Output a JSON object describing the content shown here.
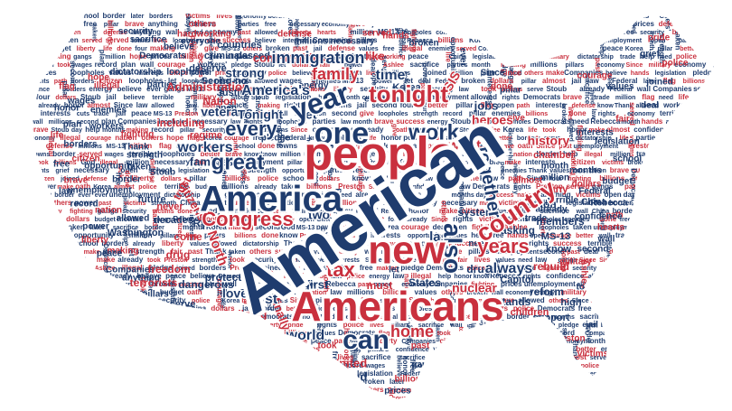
{
  "colors": {
    "red": "#c9303e",
    "blue": "#1f3c6e",
    "background": "#ffffff"
  },
  "words": [
    {
      "text": "American",
      "color": "blue"
    },
    {
      "text": "people",
      "color": "red"
    },
    {
      "text": "Americans",
      "color": "red"
    },
    {
      "text": "America",
      "color": "blue"
    },
    {
      "text": "new",
      "color": "red"
    },
    {
      "text": "can",
      "color": "blue"
    },
    {
      "text": "one",
      "color": "blue"
    },
    {
      "text": "also",
      "color": "blue"
    },
    {
      "text": "year",
      "color": "blue"
    },
    {
      "text": "tonight",
      "color": "red"
    },
    {
      "text": "country",
      "color": "red"
    },
    {
      "text": "work",
      "color": "blue"
    },
    {
      "text": "Congress",
      "color": "red"
    },
    {
      "text": "great",
      "color": "blue"
    },
    {
      "text": "every",
      "color": "blue"
    },
    {
      "text": "together",
      "color": "blue"
    },
    {
      "text": "years",
      "color": "red"
    },
    {
      "text": "home",
      "color": "red"
    },
    {
      "text": "tax",
      "color": "red"
    },
    {
      "text": "always",
      "color": "blue"
    },
    {
      "text": "family",
      "color": "red"
    },
    {
      "text": "immigration",
      "color": "blue"
    },
    {
      "text": "America's",
      "color": "blue"
    },
    {
      "text": "want",
      "color": "red"
    },
    {
      "text": "time",
      "color": "blue"
    },
    {
      "text": "world",
      "color": "blue"
    },
    {
      "text": "just",
      "color": "blue"
    },
    {
      "text": "last",
      "color": "blue"
    },
    {
      "text": "workers",
      "color": "blue"
    },
    {
      "text": "history",
      "color": "red"
    },
    {
      "text": "heroes",
      "color": "red"
    },
    {
      "text": "nuclear",
      "color": "red"
    },
    {
      "text": "jobs",
      "color": "blue"
    },
    {
      "text": "love",
      "color": "blue"
    },
    {
      "text": "two",
      "color": "blue"
    },
    {
      "text": "first",
      "color": "blue"
    },
    {
      "text": "veterans",
      "color": "blue"
    },
    {
      "text": "families",
      "color": "blue"
    },
    {
      "text": "Tonight",
      "color": "blue"
    },
    {
      "text": "get",
      "color": "blue"
    },
    {
      "text": "strong",
      "color": "blue"
    },
    {
      "text": "communities",
      "color": "red"
    },
    {
      "text": "Administration",
      "color": "red"
    },
    {
      "text": "like",
      "color": "red"
    },
    {
      "text": "ISIS",
      "color": "red"
    },
    {
      "text": "citizens",
      "color": "red"
    },
    {
      "text": "North",
      "color": "red"
    },
    {
      "text": "safe",
      "color": "red"
    },
    {
      "text": "building",
      "color": "red"
    },
    {
      "text": "finally",
      "color": "red"
    },
    {
      "text": "United",
      "color": "red"
    },
    {
      "text": "proud",
      "color": "blue"
    },
    {
      "text": "drug",
      "color": "red"
    },
    {
      "text": "protect",
      "color": "blue"
    },
    {
      "text": "freedom",
      "color": "red"
    },
    {
      "text": "dangerous",
      "color": "blue"
    },
    {
      "text": "States",
      "color": "blue"
    },
    {
      "text": "must",
      "color": "red"
    },
    {
      "text": "system",
      "color": "blue"
    },
    {
      "text": "many",
      "color": "red"
    },
    {
      "text": "Kenton",
      "color": "blue"
    },
    {
      "text": "members",
      "color": "blue"
    },
    {
      "text": "asking",
      "color": "blue"
    },
    {
      "text": "stands",
      "color": "blue"
    },
    {
      "text": "reform",
      "color": "blue"
    },
    {
      "text": "drugs",
      "color": "blue"
    },
    {
      "text": "rebuild",
      "color": "red"
    },
    {
      "text": "Capitol",
      "color": "blue"
    },
    {
      "text": "chamber",
      "color": "red"
    },
    {
      "text": "support",
      "color": "blue"
    },
    {
      "text": "children",
      "color": "red"
    },
    {
      "text": "high",
      "color": "blue"
    },
    {
      "text": "Ryan",
      "color": "blue"
    },
    {
      "text": "come",
      "color": "red"
    },
    {
      "text": "decades",
      "color": "blue"
    },
    {
      "text": "trust",
      "color": "red"
    },
    {
      "text": "including",
      "color": "red"
    },
    {
      "text": "regime",
      "color": "red"
    },
    {
      "text": "never",
      "color": "red"
    },
    {
      "text": "future",
      "color": "blue"
    },
    {
      "text": "terrorists",
      "color": "red"
    },
    {
      "text": "Washington",
      "color": "blue"
    },
    {
      "text": "Nation",
      "color": "red"
    },
    {
      "text": "Justin",
      "color": "blue"
    },
    {
      "text": "Seong-ho",
      "color": "blue"
    },
    {
      "text": "deserve",
      "color": "blue"
    },
    {
      "text": "passed",
      "color": "blue"
    },
    {
      "text": "criminals",
      "color": "blue"
    },
    {
      "text": "countries",
      "color": "blue"
    },
    {
      "text": "everyone",
      "color": "blue"
    },
    {
      "text": "Korea",
      "color": "blue"
    },
    {
      "text": "Since",
      "color": "blue"
    },
    {
      "text": "pillar",
      "color": "blue"
    },
    {
      "text": "MS-13",
      "color": "blue"
    },
    {
      "text": "know",
      "color": "blue"
    },
    {
      "text": "make",
      "color": "red"
    },
    {
      "text": "cuts",
      "color": "blue"
    },
    {
      "text": "took",
      "color": "red"
    },
    {
      "text": "later",
      "color": "blue"
    },
    {
      "text": "past",
      "color": "red"
    },
    {
      "text": "help",
      "color": "blue"
    },
    {
      "text": "let",
      "color": "blue"
    },
    {
      "text": "four",
      "color": "blue"
    },
    {
      "text": "month",
      "color": "blue"
    },
    {
      "text": "million",
      "color": "blue"
    },
    {
      "text": "dollars",
      "color": "red"
    },
    {
      "text": "legislation",
      "color": "blue"
    },
    {
      "text": "interests",
      "color": "blue"
    },
    {
      "text": "months",
      "color": "blue"
    },
    {
      "text": "military",
      "color": "red"
    },
    {
      "text": "trade",
      "color": "blue"
    },
    {
      "text": "second",
      "color": "blue"
    },
    {
      "text": "Preston",
      "color": "red"
    },
    {
      "text": "serve",
      "color": "blue"
    },
    {
      "text": "pillars",
      "color": "blue"
    },
    {
      "text": "making",
      "color": "red"
    },
    {
      "text": "anything",
      "color": "blue"
    },
    {
      "text": "Companies",
      "color": "blue"
    },
    {
      "text": "allowed",
      "color": "blue"
    },
    {
      "text": "open",
      "color": "blue"
    },
    {
      "text": "pledge",
      "color": "blue"
    },
    {
      "text": "Stoub",
      "color": "blue"
    },
    {
      "text": "border",
      "color": "blue"
    },
    {
      "text": "strength",
      "color": "blue"
    },
    {
      "text": "Rebecca",
      "color": "blue"
    },
    {
      "text": "Ashlee",
      "color": "red"
    },
    {
      "text": "God",
      "color": "blue"
    },
    {
      "text": "Democrats",
      "color": "blue"
    },
    {
      "text": "dictatorship",
      "color": "blue"
    },
    {
      "text": "loopholes",
      "color": "blue"
    },
    {
      "text": "parties",
      "color": "blue"
    },
    {
      "text": "energy",
      "color": "blue"
    },
    {
      "text": "hands",
      "color": "red"
    },
    {
      "text": "served",
      "color": "red"
    },
    {
      "text": "defense",
      "color": "red"
    },
    {
      "text": "necessary",
      "color": "blue"
    },
    {
      "text": "millions",
      "color": "blue"
    },
    {
      "text": "economy",
      "color": "blue"
    },
    {
      "text": "broken",
      "color": "blue"
    },
    {
      "text": "done",
      "color": "red"
    },
    {
      "text": "lives",
      "color": "red"
    },
    {
      "text": "give",
      "color": "red"
    },
    {
      "text": "Federal",
      "color": "blue"
    },
    {
      "text": "China",
      "color": "blue"
    },
    {
      "text": "almost",
      "color": "red"
    },
    {
      "text": "already",
      "color": "blue"
    },
    {
      "text": "confidence",
      "color": "blue"
    },
    {
      "text": "terrible",
      "color": "blue"
    },
    {
      "text": "need",
      "color": "blue"
    },
    {
      "text": "Thank",
      "color": "blue"
    },
    {
      "text": "taken",
      "color": "blue"
    },
    {
      "text": "believe",
      "color": "blue"
    },
    {
      "text": "others",
      "color": "red"
    },
    {
      "text": "sacrifice",
      "color": "blue"
    },
    {
      "text": "hardworking",
      "color": "red"
    },
    {
      "text": "illegal",
      "color": "red"
    },
    {
      "text": "security",
      "color": "blue"
    },
    {
      "text": "ever",
      "color": "blue"
    },
    {
      "text": "day",
      "color": "blue"
    },
    {
      "text": "better",
      "color": "red"
    },
    {
      "text": "fighting",
      "color": "red"
    },
    {
      "text": "enemies",
      "color": "blue"
    },
    {
      "text": "workers'",
      "color": "blue"
    },
    {
      "text": "Since",
      "color": "red"
    },
    {
      "text": "wages",
      "color": "blue"
    },
    {
      "text": "plan",
      "color": "blue"
    },
    {
      "text": "borders",
      "color": "blue"
    },
    {
      "text": "citizen",
      "color": "red"
    },
    {
      "text": "opportunity",
      "color": "blue"
    },
    {
      "text": "brave",
      "color": "red"
    },
    {
      "text": "unemployment",
      "color": "blue"
    },
    {
      "text": "record",
      "color": "blue"
    },
    {
      "text": "nation",
      "color": "red"
    },
    {
      "text": "power",
      "color": "blue"
    },
    {
      "text": "liberty",
      "color": "red"
    },
    {
      "text": "peace",
      "color": "blue"
    },
    {
      "text": "hope",
      "color": "red"
    },
    {
      "text": "flag",
      "color": "red"
    },
    {
      "text": "honor",
      "color": "blue"
    },
    {
      "text": "life",
      "color": "red"
    },
    {
      "text": "free",
      "color": "blue"
    },
    {
      "text": "law",
      "color": "blue"
    },
    {
      "text": "fair",
      "color": "red"
    },
    {
      "text": "deal",
      "color": "blue"
    },
    {
      "text": "joined",
      "color": "blue"
    },
    {
      "text": "police",
      "color": "red"
    },
    {
      "text": "grief",
      "color": "blue"
    },
    {
      "text": "pride",
      "color": "red"
    },
    {
      "text": "values",
      "color": "blue"
    },
    {
      "text": "courage",
      "color": "red"
    },
    {
      "text": "school",
      "color": "blue"
    },
    {
      "text": "budget",
      "color": "blue"
    },
    {
      "text": "hearts",
      "color": "red"
    },
    {
      "text": "wall",
      "color": "blue"
    },
    {
      "text": "path",
      "color": "red"
    },
    {
      "text": "towns",
      "color": "blue"
    },
    {
      "text": "jail",
      "color": "blue"
    },
    {
      "text": "victims",
      "color": "red"
    },
    {
      "text": "gangs",
      "color": "blue"
    },
    {
      "text": "billions",
      "color": "red"
    },
    {
      "text": "prices",
      "color": "blue"
    },
    {
      "text": "success",
      "color": "red"
    },
    {
      "text": "rights",
      "color": "blue"
    },
    {
      "text": "oath",
      "color": "red"
    }
  ]
}
